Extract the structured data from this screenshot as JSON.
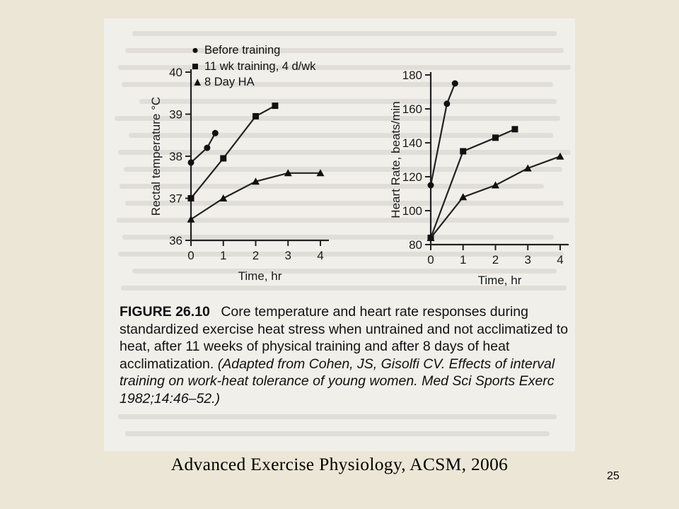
{
  "legend": {
    "before": "Before training",
    "trained": "11 wk training, 4 d/wk",
    "ha": "8 Day HA",
    "before_symbol": "●",
    "trained_symbol": "■",
    "ha_symbol": "▲"
  },
  "chart_data": [
    {
      "type": "line",
      "title": "",
      "xlabel": "Time, hr",
      "ylabel": "Rectal temperature °C",
      "x_ticks": [
        0,
        1,
        2,
        3,
        4
      ],
      "y_ticks": [
        36,
        37,
        38,
        39,
        40
      ],
      "xlim": [
        0,
        4
      ],
      "ylim": [
        36,
        40
      ],
      "series": [
        {
          "name": "Before training",
          "marker": "circle",
          "points": [
            [
              0,
              37.85
            ],
            [
              0.5,
              38.2
            ],
            [
              0.75,
              38.55
            ]
          ]
        },
        {
          "name": "11 wk training, 4 d/wk",
          "marker": "square",
          "points": [
            [
              0,
              37.0
            ],
            [
              1,
              37.95
            ],
            [
              2,
              38.95
            ],
            [
              2.6,
              39.2
            ]
          ]
        },
        {
          "name": "8 Day HA",
          "marker": "triangle",
          "points": [
            [
              0,
              36.5
            ],
            [
              1,
              37.0
            ],
            [
              2,
              37.4
            ],
            [
              3,
              37.6
            ],
            [
              4,
              37.6
            ]
          ]
        }
      ]
    },
    {
      "type": "line",
      "title": "",
      "xlabel": "Time, hr",
      "ylabel": "Heart Rate, beats/min",
      "x_ticks": [
        0,
        1,
        2,
        3,
        4
      ],
      "y_ticks": [
        80,
        100,
        120,
        140,
        160,
        180
      ],
      "xlim": [
        0,
        4
      ],
      "ylim": [
        80,
        180
      ],
      "series": [
        {
          "name": "Before training",
          "marker": "circle",
          "points": [
            [
              0,
              115
            ],
            [
              0.5,
              163
            ],
            [
              0.75,
              175
            ]
          ]
        },
        {
          "name": "11 wk training, 4 d/wk",
          "marker": "square",
          "points": [
            [
              0,
              84
            ],
            [
              1,
              135
            ],
            [
              2,
              143
            ],
            [
              2.6,
              148
            ]
          ]
        },
        {
          "name": "8 Day HA",
          "marker": "triangle",
          "points": [
            [
              0,
              84
            ],
            [
              1,
              108
            ],
            [
              2,
              115
            ],
            [
              3,
              125
            ],
            [
              4,
              132
            ]
          ]
        }
      ]
    }
  ],
  "caption": {
    "label": "FIGURE 26.10",
    "text": "Core temperature and heart rate responses during standardized exercise heat stress when untrained and not acclimatized to heat, after 11 weeks of physical training and after 8 days of heat acclimatization.",
    "citation": "(Adapted from Cohen, JS, Gisolfi CV. Effects of interval training on work-heat tolerance of young women. Med Sci Sports Exerc 1982;14:46–52.)"
  },
  "source": "Advanced Exercise Physiology, ACSM, 2006",
  "page_number": "25"
}
